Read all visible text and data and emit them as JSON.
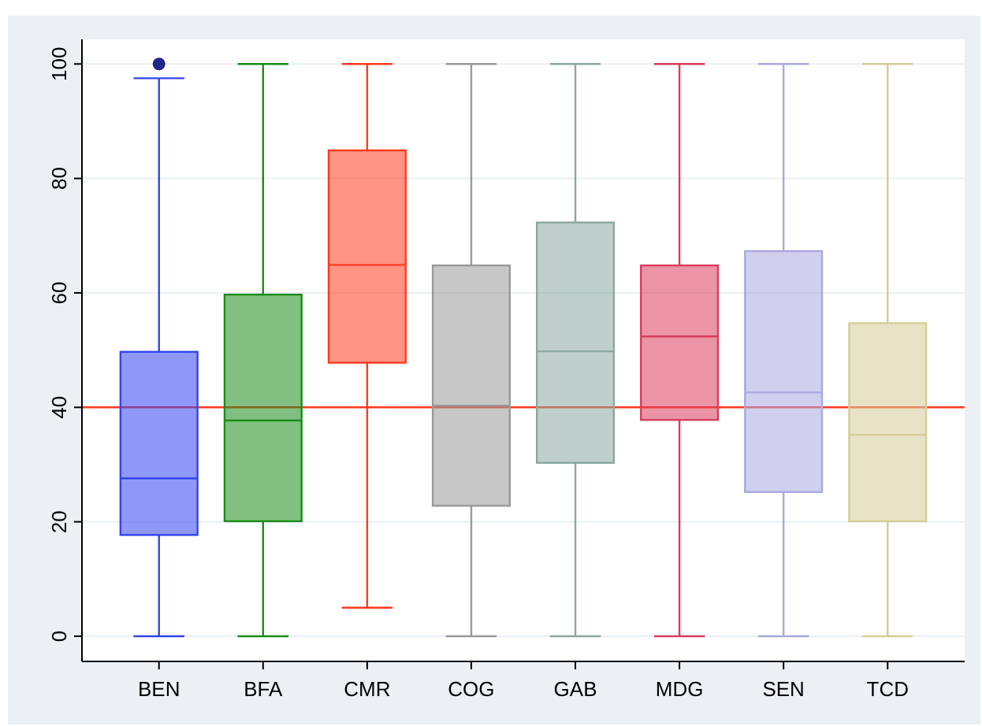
{
  "chart_data": {
    "type": "box",
    "categories": [
      "BEN",
      "BFA",
      "CMR",
      "COG",
      "GAB",
      "MDG",
      "SEN",
      "TCD"
    ],
    "boxes": [
      {
        "low": 0,
        "q1": 17.7,
        "median": 27.6,
        "q3": 49.7,
        "high": 97.5,
        "outliers": [
          100
        ]
      },
      {
        "low": 0,
        "q1": 20.1,
        "median": 37.7,
        "q3": 59.7,
        "high": 100
      },
      {
        "low": 5,
        "q1": 47.8,
        "median": 64.9,
        "q3": 84.9,
        "high": 100
      },
      {
        "low": 0,
        "q1": 22.8,
        "median": 40.3,
        "q3": 64.8,
        "high": 100
      },
      {
        "low": 0,
        "q1": 30.3,
        "median": 49.8,
        "q3": 72.3,
        "high": 100
      },
      {
        "low": 0,
        "q1": 37.8,
        "median": 52.4,
        "q3": 64.8,
        "high": 100
      },
      {
        "low": 0,
        "q1": 25.2,
        "median": 42.6,
        "q3": 67.3,
        "high": 100
      },
      {
        "low": 0,
        "q1": 20.1,
        "median": 35.2,
        "q3": 54.7,
        "high": 100
      }
    ],
    "colors": [
      "#3344ee",
      "#1a8c1a",
      "#ff3b1f",
      "#999999",
      "#8aa8a0",
      "#d83d5d",
      "#aaa8e0",
      "#d6cc95"
    ],
    "ylim": [
      -4.4,
      104.3
    ],
    "yticks": [
      0,
      20,
      40,
      60,
      80,
      100
    ],
    "grid": "y",
    "ref_lines": [
      {
        "axis": "y",
        "value": 40,
        "color": "#ff3b1f"
      }
    ]
  }
}
